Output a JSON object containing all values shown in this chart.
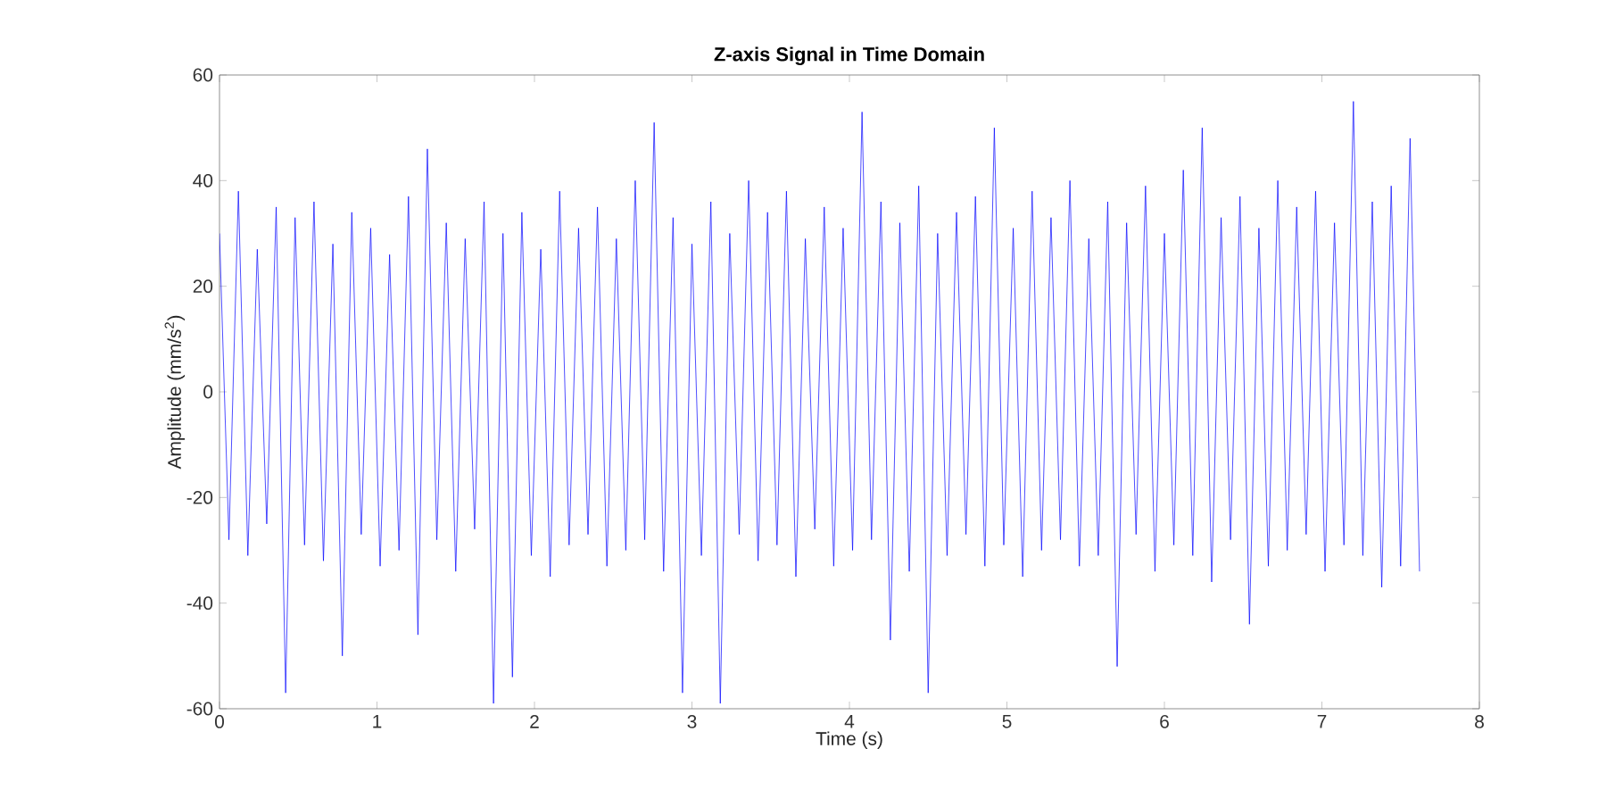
{
  "chart_data": {
    "type": "line",
    "title": "Z-axis Signal in Time Domain",
    "xlabel": "Time (s)",
    "ylabel": "Amplitude (mm/s$^{2}$)",
    "color": "#0000ff",
    "marker": "none",
    "line_style": "solid",
    "xlim": [
      0,
      8
    ],
    "ylim": [
      -60,
      60
    ],
    "xticks": [
      0,
      1,
      2,
      3,
      4,
      5,
      6,
      7,
      8
    ],
    "yticks": [
      -60,
      -40,
      -20,
      0,
      20,
      40,
      60
    ],
    "x": [
      0,
      0.06,
      0.12,
      0.18,
      0.24,
      0.3,
      0.36,
      0.42,
      0.48,
      0.54,
      0.6,
      0.66,
      0.72,
      0.78,
      0.84,
      0.9,
      0.96,
      1.02,
      1.08,
      1.14,
      1.2,
      1.26,
      1.32,
      1.38,
      1.44,
      1.5,
      1.56,
      1.62,
      1.68,
      1.74,
      1.8,
      1.86,
      1.92,
      1.98,
      2.04,
      2.1,
      2.16,
      2.22,
      2.28,
      2.34,
      2.4,
      2.46,
      2.52,
      2.58,
      2.64,
      2.7,
      2.76,
      2.82,
      2.88,
      2.94,
      3,
      3.06,
      3.12,
      3.18,
      3.24,
      3.3,
      3.36,
      3.42,
      3.48,
      3.54,
      3.6,
      3.66,
      3.72,
      3.78,
      3.84,
      3.9,
      3.96,
      4.02,
      4.08,
      4.14,
      4.2,
      4.26,
      4.32,
      4.38,
      4.44,
      4.5,
      4.56,
      4.62,
      4.68,
      4.74,
      4.8,
      4.86,
      4.92,
      4.98,
      5.04,
      5.1,
      5.16,
      5.22,
      5.28,
      5.34,
      5.4,
      5.46,
      5.52,
      5.58,
      5.64,
      5.7,
      5.76,
      5.82,
      5.88,
      5.94,
      6,
      6.06,
      6.12,
      6.18,
      6.24,
      6.3,
      6.36,
      6.42,
      6.48,
      6.54,
      6.6,
      6.66,
      6.72,
      6.78,
      6.84,
      6.9,
      6.96,
      7.02,
      7.08,
      7.14,
      7.2,
      7.26,
      7.32,
      7.38,
      7.44,
      7.5,
      7.56,
      7.62
    ],
    "values": [
      30,
      -28,
      38,
      -31,
      27,
      -25,
      35,
      -57,
      33,
      -29,
      36,
      -32,
      28,
      -50,
      34,
      -27,
      31,
      -33,
      26,
      -30,
      37,
      -46,
      46,
      -28,
      32,
      -34,
      29,
      -26,
      36,
      -59,
      30,
      -54,
      34,
      -31,
      27,
      -35,
      38,
      -29,
      31,
      -27,
      35,
      -33,
      29,
      -30,
      40,
      -28,
      51,
      -34,
      33,
      -57,
      28,
      -31,
      36,
      -59,
      30,
      -27,
      40,
      -32,
      34,
      -29,
      38,
      -35,
      29,
      -26,
      35,
      -33,
      31,
      -30,
      53,
      -28,
      36,
      -47,
      32,
      -34,
      39,
      -57,
      30,
      -31,
      34,
      -27,
      37,
      -33,
      50,
      -29,
      31,
      -35,
      38,
      -30,
      33,
      -28,
      40,
      -33,
      29,
      -31,
      36,
      -52,
      32,
      -27,
      39,
      -34,
      30,
      -29,
      42,
      -31,
      50,
      -36,
      33,
      -28,
      37,
      -44,
      31,
      -33,
      40,
      -30,
      35,
      -27,
      38,
      -34,
      32,
      -29,
      55,
      -31,
      36,
      -37,
      39,
      -33,
      48,
      -34
    ]
  }
}
